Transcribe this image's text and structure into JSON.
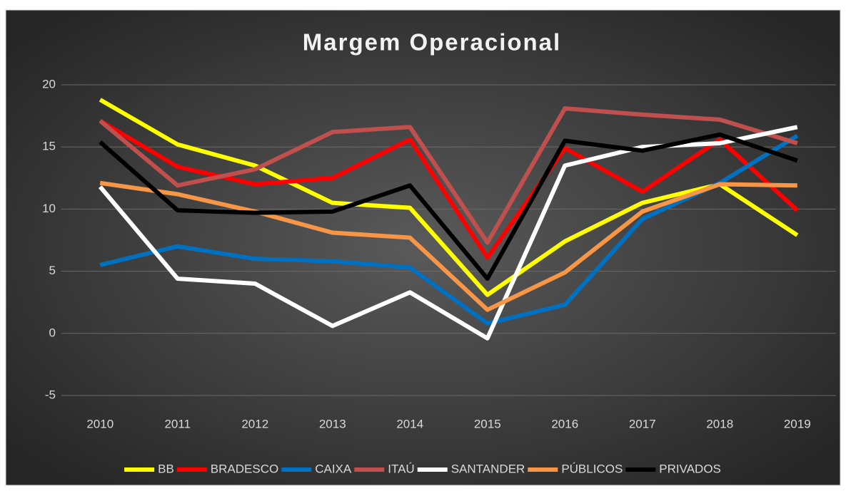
{
  "chart_data": {
    "type": "line",
    "title": "Margem Operacional",
    "categories": [
      "2010",
      "2011",
      "2012",
      "2013",
      "2014",
      "2015",
      "2016",
      "2017",
      "2018",
      "2019"
    ],
    "series": [
      {
        "name": "BB",
        "color": "#ffff00",
        "values": [
          18.8,
          15.2,
          13.5,
          10.5,
          10.1,
          3.1,
          7.4,
          10.5,
          12.0,
          7.9
        ]
      },
      {
        "name": "BRADESCO",
        "color": "#ff0000",
        "values": [
          17.1,
          13.4,
          12.0,
          12.5,
          15.6,
          6.1,
          14.9,
          11.4,
          15.6,
          9.9
        ]
      },
      {
        "name": "CAIXA",
        "color": "#0070c0",
        "values": [
          5.5,
          7.0,
          6.0,
          5.8,
          5.3,
          0.8,
          2.3,
          9.2,
          12.1,
          15.9
        ]
      },
      {
        "name": "ITAÚ",
        "color": "#c0504d",
        "values": [
          17.1,
          11.9,
          13.2,
          16.2,
          16.6,
          7.3,
          18.1,
          17.6,
          17.2,
          15.3
        ]
      },
      {
        "name": "SANTANDER",
        "color": "#ffffff",
        "values": [
          11.8,
          4.4,
          4.0,
          0.6,
          3.3,
          -0.4,
          13.5,
          15.0,
          15.3,
          16.6
        ]
      },
      {
        "name": "PÚBLICOS",
        "color": "#f79646",
        "values": [
          12.1,
          11.2,
          9.8,
          8.1,
          7.7,
          1.9,
          4.9,
          9.8,
          12.0,
          11.9
        ]
      },
      {
        "name": "PRIVADOS",
        "color": "#000000",
        "values": [
          15.4,
          9.9,
          9.7,
          9.8,
          11.9,
          4.4,
          15.5,
          14.7,
          16.0,
          13.9
        ]
      }
    ],
    "ylim": [
      -5,
      20
    ],
    "yticks": [
      -5,
      0,
      5,
      10,
      15,
      20
    ],
    "grid": true,
    "legend": "bottom"
  }
}
